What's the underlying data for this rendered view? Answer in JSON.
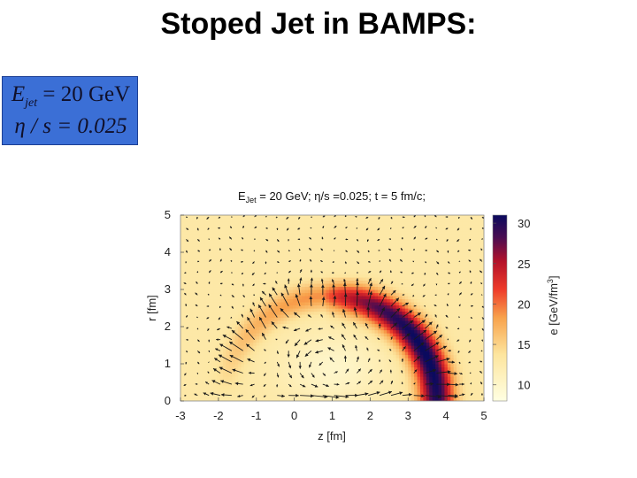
{
  "slide": {
    "title": "Stoped Jet in BAMPS:",
    "box_line1": "E",
    "box_line1_sub": "jet",
    "box_line1_rest": " = 20 GeV",
    "box_line2": "η / s = 0.025",
    "box_color": "#3b6fd6"
  },
  "chart_data": {
    "type": "heatmap",
    "title_main": "E",
    "title_sub": "Jet",
    "title_rest": " = 20 GeV; η/s =0.025; t = 5 fm/c;",
    "xlabel": "z [fm]",
    "ylabel": "r [fm]",
    "colorbar_label": "e [GeV/fm",
    "colorbar_label_sup": "3",
    "colorbar_label_end": "]",
    "xlim": [
      -3,
      5
    ],
    "ylim": [
      0,
      5
    ],
    "xticks": [
      -3,
      -2,
      -1,
      0,
      1,
      2,
      3,
      4,
      5
    ],
    "yticks": [
      0,
      1,
      2,
      3,
      4,
      5
    ],
    "clim": [
      8,
      31
    ],
    "cticks": [
      10,
      15,
      20,
      25,
      30
    ],
    "background_energy": 13,
    "front": {
      "center_z": 1.0,
      "center_r": 0.0,
      "radius": 2.75,
      "width": 0.45,
      "peak": 30,
      "r_max": 3.3,
      "note": "Mach-cone-like energy density front"
    },
    "wake": {
      "center_z": 1.0,
      "center_r": 0.9,
      "min_energy": 10
    },
    "flow": {
      "vortex_center": [
        1.0,
        1.0
      ],
      "front_arrows_radial": true,
      "grid_step": 0.3
    }
  }
}
